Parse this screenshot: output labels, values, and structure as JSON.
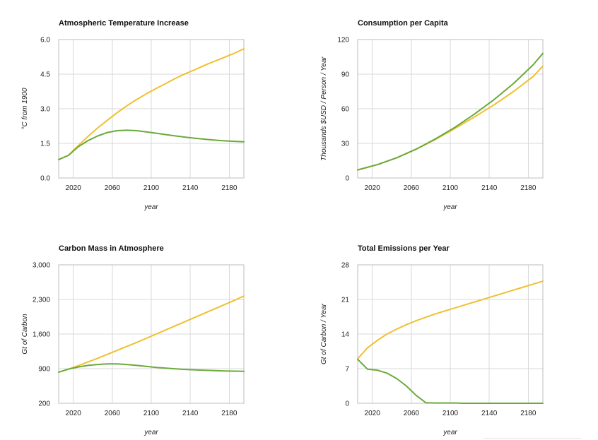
{
  "colors": {
    "series_a": "#efc02f",
    "series_b": "#6aaa3c"
  },
  "chart_data": [
    {
      "type": "line",
      "title": "Atmospheric Temperature Increase",
      "xlabel": "year",
      "ylabel": "°C from 1900",
      "xlim": [
        2005,
        2195
      ],
      "ylim": [
        0,
        6
      ],
      "yticks": [
        0,
        1.5,
        3,
        4.5,
        6
      ],
      "ytick_labels": [
        "0.0",
        "1.5",
        "3.0",
        "4.5",
        "6.0"
      ],
      "xticks": [
        2020,
        2060,
        2100,
        2140,
        2180
      ],
      "xtick_labels": [
        "2020",
        "2060",
        "2100",
        "2140",
        "2180"
      ],
      "series": [
        {
          "color": "#efc02f",
          "x": [
            2005,
            2015,
            2025,
            2035,
            2045,
            2055,
            2065,
            2075,
            2085,
            2095,
            2105,
            2115,
            2125,
            2135,
            2145,
            2155,
            2165,
            2175,
            2185,
            2195
          ],
          "values": [
            0.8,
            0.98,
            1.4,
            1.8,
            2.17,
            2.5,
            2.83,
            3.13,
            3.4,
            3.65,
            3.88,
            4.1,
            4.32,
            4.52,
            4.7,
            4.89,
            5.06,
            5.23,
            5.4,
            5.6
          ]
        },
        {
          "color": "#6aaa3c",
          "x": [
            2005,
            2015,
            2025,
            2035,
            2045,
            2055,
            2065,
            2075,
            2085,
            2095,
            2105,
            2115,
            2125,
            2135,
            2145,
            2155,
            2165,
            2175,
            2185,
            2195
          ],
          "values": [
            0.8,
            0.98,
            1.35,
            1.62,
            1.82,
            1.97,
            2.05,
            2.07,
            2.05,
            2.0,
            1.94,
            1.88,
            1.82,
            1.77,
            1.72,
            1.68,
            1.64,
            1.61,
            1.59,
            1.57
          ]
        }
      ]
    },
    {
      "type": "line",
      "title": "Consumption per Capita",
      "xlabel": "year",
      "ylabel": "Thousands $USD / Person / Year",
      "xlim": [
        2005,
        2195
      ],
      "ylim": [
        0,
        120
      ],
      "yticks": [
        0,
        30,
        60,
        90,
        120
      ],
      "ytick_labels": [
        "0",
        "30",
        "60",
        "90",
        "120"
      ],
      "xticks": [
        2020,
        2060,
        2100,
        2140,
        2180
      ],
      "xtick_labels": [
        "2020",
        "2060",
        "2100",
        "2140",
        "2180"
      ],
      "series": [
        {
          "color": "#efc02f",
          "x": [
            2005,
            2025,
            2045,
            2065,
            2085,
            2105,
            2125,
            2145,
            2165,
            2185,
            2195
          ],
          "values": [
            7,
            11.5,
            17.5,
            25,
            33.5,
            43,
            53,
            63.5,
            75,
            88,
            97
          ]
        },
        {
          "color": "#6aaa3c",
          "x": [
            2005,
            2025,
            2045,
            2065,
            2085,
            2105,
            2125,
            2145,
            2165,
            2185,
            2195
          ],
          "values": [
            7,
            11.5,
            17.5,
            25,
            34,
            44,
            55.5,
            68,
            82,
            98,
            108
          ]
        }
      ]
    },
    {
      "type": "line",
      "title": "Carbon Mass in Atmosphere",
      "xlabel": "year",
      "ylabel": "Gt of Carbon",
      "xlim": [
        2005,
        2195
      ],
      "ylim": [
        200,
        3000
      ],
      "yticks": [
        200,
        900,
        1600,
        2300,
        3000
      ],
      "ytick_labels": [
        "200",
        "900",
        "1,600",
        "2,300",
        "3,000"
      ],
      "xticks": [
        2020,
        2060,
        2100,
        2140,
        2180
      ],
      "xtick_labels": [
        "2020",
        "2060",
        "2100",
        "2140",
        "2180"
      ],
      "series": [
        {
          "color": "#efc02f",
          "x": [
            2005,
            2015,
            2025,
            2045,
            2065,
            2085,
            2105,
            2125,
            2145,
            2165,
            2185,
            2195
          ],
          "values": [
            830,
            890,
            960,
            1110,
            1270,
            1430,
            1600,
            1770,
            1940,
            2110,
            2280,
            2370
          ]
        },
        {
          "color": "#6aaa3c",
          "x": [
            2005,
            2015,
            2025,
            2035,
            2045,
            2055,
            2065,
            2075,
            2085,
            2095,
            2105,
            2115,
            2125,
            2135,
            2145,
            2155,
            2165,
            2175,
            2185,
            2195
          ],
          "values": [
            830,
            890,
            935,
            965,
            985,
            995,
            995,
            985,
            965,
            945,
            925,
            910,
            895,
            885,
            875,
            868,
            860,
            855,
            850,
            845
          ]
        }
      ]
    },
    {
      "type": "line",
      "title": "Total Emissions per Year",
      "xlabel": "year",
      "ylabel": "Gt of Carbon / Year",
      "xlim": [
        2005,
        2195
      ],
      "ylim": [
        0,
        28
      ],
      "yticks": [
        0,
        7,
        14,
        21,
        28
      ],
      "ytick_labels": [
        "0",
        "7",
        "14",
        "21",
        "28"
      ],
      "xticks": [
        2020,
        2060,
        2100,
        2140,
        2180
      ],
      "xtick_labels": [
        "2020",
        "2060",
        "2100",
        "2140",
        "2180"
      ],
      "series": [
        {
          "color": "#efc02f",
          "x": [
            2005,
            2015,
            2025,
            2035,
            2045,
            2055,
            2065,
            2075,
            2085,
            2095,
            2105,
            2115,
            2125,
            2135,
            2145,
            2155,
            2165,
            2175,
            2185,
            2195
          ],
          "values": [
            9,
            11.2,
            12.7,
            14,
            15,
            15.9,
            16.7,
            17.4,
            18.1,
            18.7,
            19.3,
            19.9,
            20.5,
            21.1,
            21.7,
            22.3,
            22.9,
            23.5,
            24.1,
            24.7
          ]
        },
        {
          "color": "#6aaa3c",
          "x": [
            2005,
            2015,
            2025,
            2035,
            2045,
            2055,
            2065,
            2075,
            2085,
            2095,
            2105,
            2115,
            2195
          ],
          "values": [
            8.9,
            6.9,
            6.7,
            6.1,
            5.0,
            3.5,
            1.6,
            0.1,
            0.05,
            0.05,
            0.05,
            0,
            0
          ]
        }
      ]
    }
  ]
}
